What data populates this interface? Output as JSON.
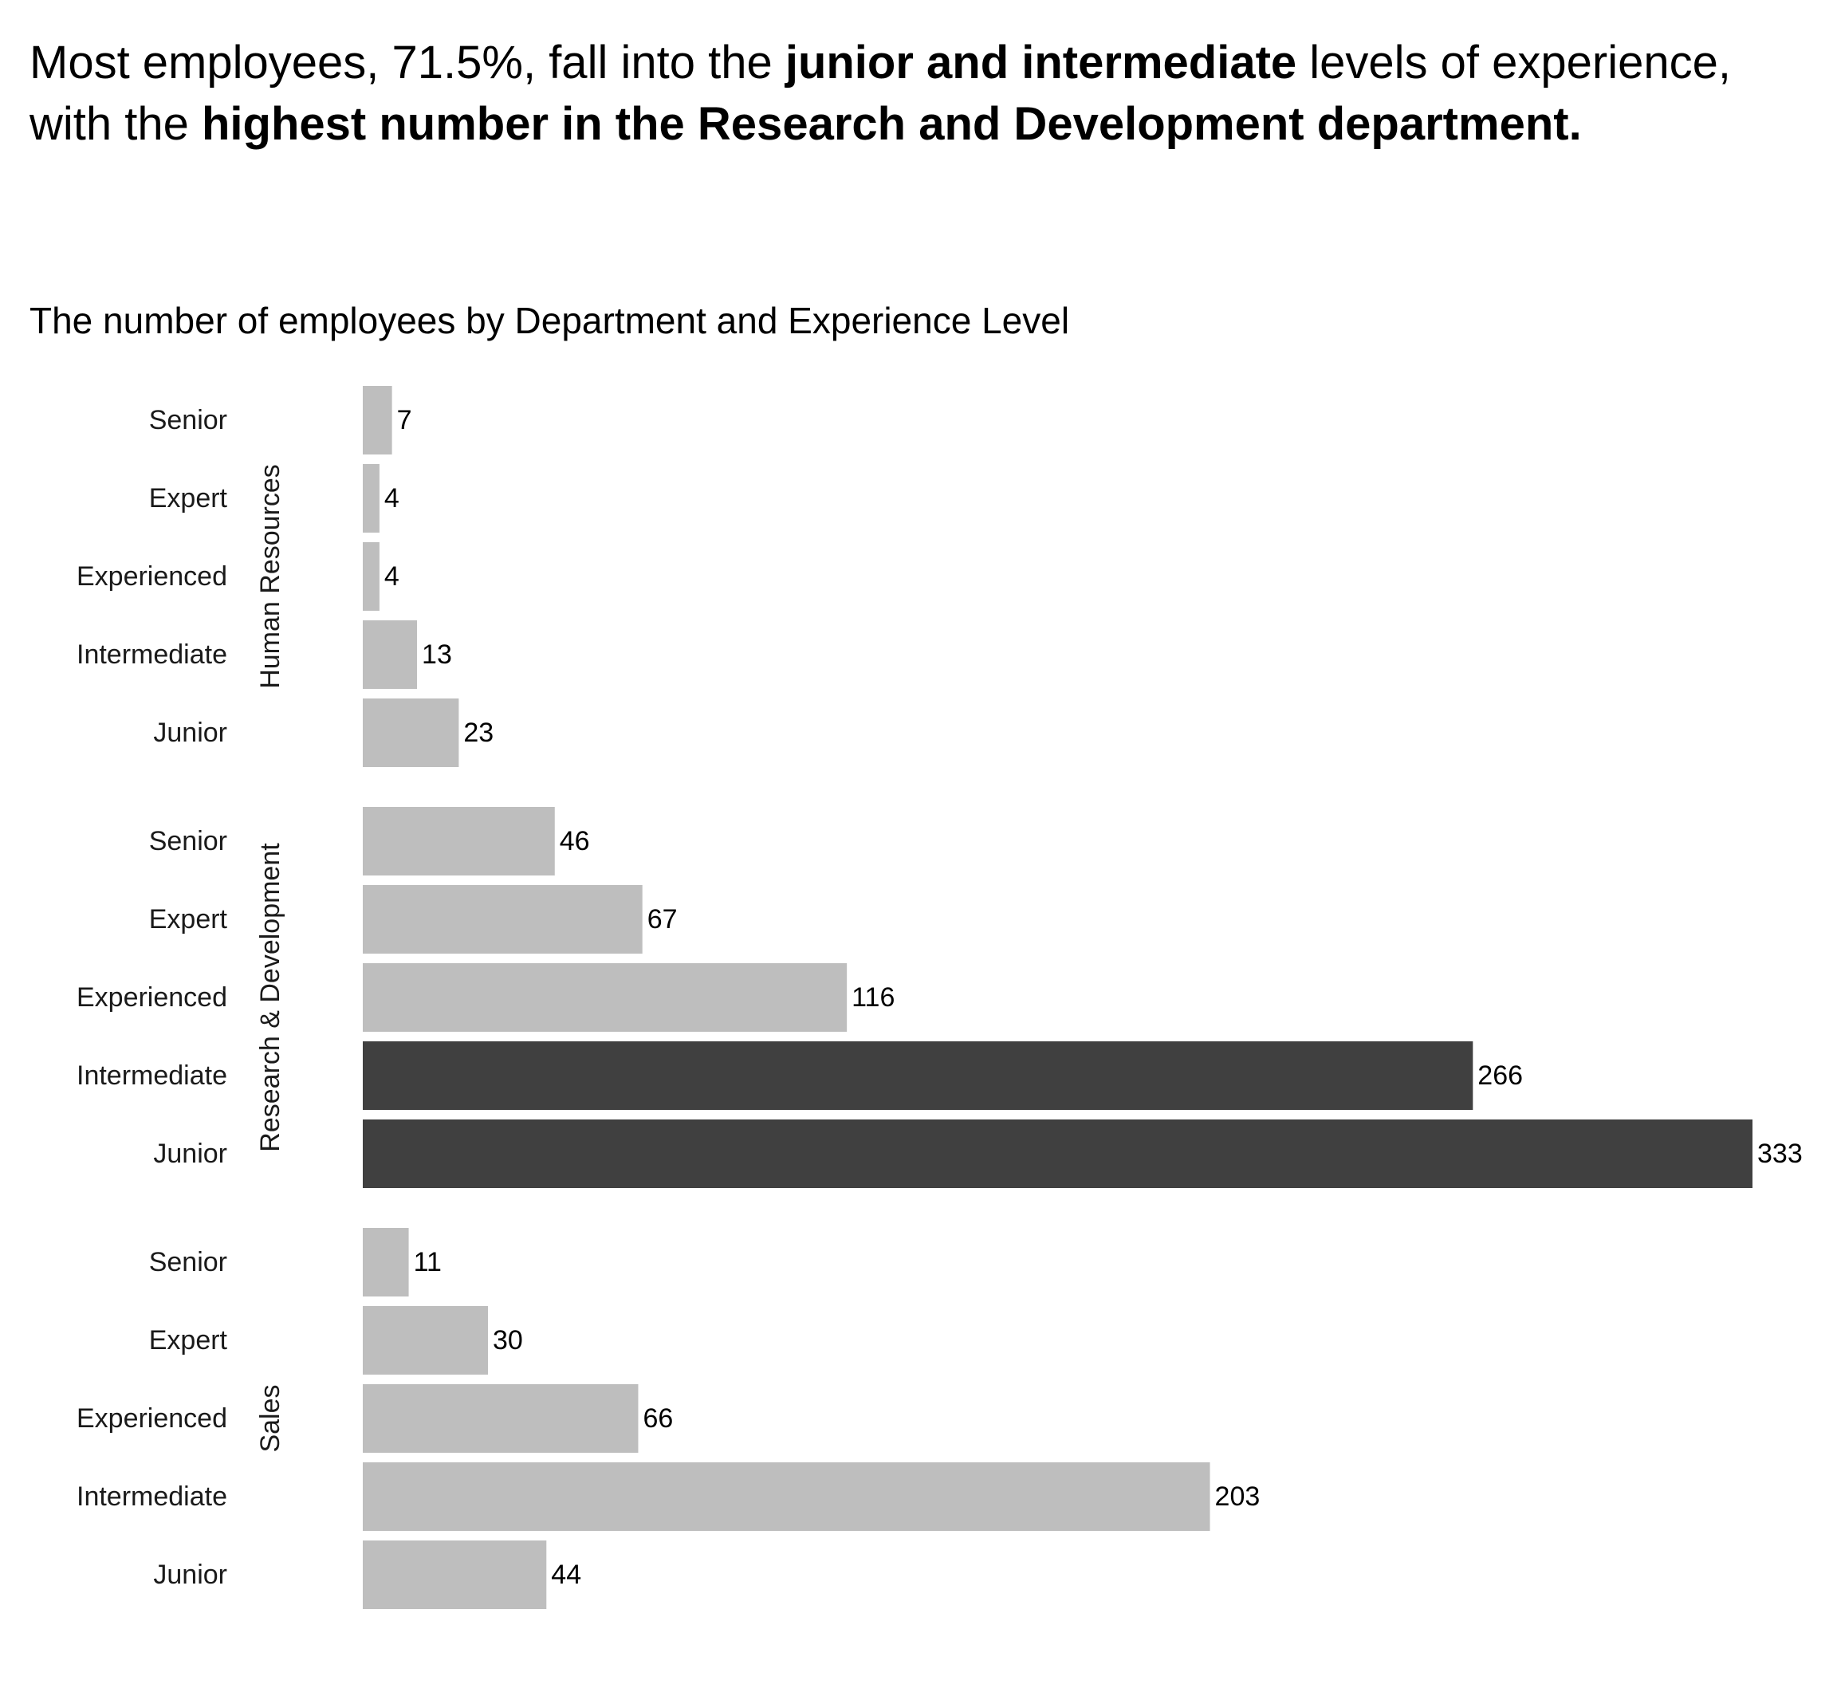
{
  "headline": {
    "part1": "Most employees, 71.5%, fall into the ",
    "bold1": "junior and intermediate",
    "part2": " levels of experience, with the ",
    "bold2": "highest number in the Research and Development department."
  },
  "chart_data": {
    "type": "bar",
    "orientation": "horizontal",
    "title": "The number of employees by Department and Experience Level",
    "xlabel": "",
    "ylabel": "",
    "xlim": [
      0,
      333
    ],
    "grid": false,
    "legend": "none",
    "colors": {
      "default": "#bebebe",
      "highlight": "#404040"
    },
    "groups": [
      {
        "department": "Human Resources",
        "categories": [
          "Senior",
          "Expert",
          "Experienced",
          "Intermediate",
          "Junior"
        ],
        "values": [
          7,
          4,
          4,
          13,
          23
        ],
        "highlight": [
          false,
          false,
          false,
          false,
          false
        ]
      },
      {
        "department": "Research & Development",
        "categories": [
          "Senior",
          "Expert",
          "Experienced",
          "Intermediate",
          "Junior"
        ],
        "values": [
          46,
          67,
          116,
          266,
          333
        ],
        "highlight": [
          false,
          false,
          false,
          true,
          true
        ]
      },
      {
        "department": "Sales",
        "categories": [
          "Senior",
          "Expert",
          "Experienced",
          "Intermediate",
          "Junior"
        ],
        "values": [
          11,
          30,
          66,
          203,
          44
        ],
        "highlight": [
          false,
          false,
          false,
          false,
          false
        ]
      }
    ]
  }
}
